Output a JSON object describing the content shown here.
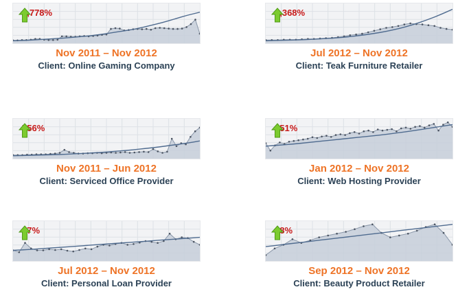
{
  "colors": {
    "percent": "#c81919",
    "period": "#ee7326",
    "client": "#2c4256",
    "area": "#c7ced9",
    "trend": "#4f6b8f",
    "arrow": "#7ccb2f"
  },
  "icon": "green-up-arrow-icon",
  "cards": [
    {
      "percent": "2,778%",
      "period": "Nov 2011 – Nov 2012",
      "client": "Client: Online Gaming Company"
    },
    {
      "percent": "1,368%",
      "period": "Jul 2012 – Nov 2012",
      "client": "Client: Teak Furniture Retailer"
    },
    {
      "percent": "756%",
      "period": "Nov 2011 – Jun 2012",
      "client": "Client: Serviced Office Provider"
    },
    {
      "percent": "251%",
      "period": "Jan 2012 – Nov 2012",
      "client": "Client: Web Hosting Provider"
    },
    {
      "percent": "67%",
      "period": "Jul 2012 – Nov 2012",
      "client": "Client: Personal Loan Provider"
    },
    {
      "percent": "28%",
      "period": "Sep 2012 – Nov 2012",
      "client": "Client: Beauty Product Retailer"
    }
  ],
  "chart_data": [
    {
      "type": "area",
      "ylim": [
        0,
        100
      ],
      "values": [
        4,
        4,
        5,
        5,
        6,
        8,
        8,
        6,
        5,
        5,
        6,
        15,
        15,
        14,
        14,
        15,
        16,
        15,
        16,
        17,
        19,
        20,
        35,
        37,
        36,
        31,
        32,
        34,
        35,
        34,
        35,
        33,
        37,
        38,
        37,
        36,
        35,
        35,
        36,
        40,
        48,
        60,
        22
      ],
      "trend": [
        3,
        4,
        6,
        8,
        10,
        13,
        16,
        20,
        25,
        30,
        36,
        44,
        52,
        62,
        72,
        80
      ]
    },
    {
      "type": "area",
      "ylim": [
        0,
        100
      ],
      "values": [
        5,
        5,
        5,
        6,
        6,
        6,
        7,
        8,
        8,
        9,
        10,
        11,
        13,
        15,
        18,
        20,
        22,
        26,
        30,
        34,
        38,
        40,
        43,
        47,
        50,
        48,
        47,
        45,
        43,
        38,
        35,
        33
      ],
      "trend": [
        3,
        4,
        5,
        6,
        8,
        10,
        13,
        17,
        22,
        28,
        36,
        46,
        58,
        72,
        88
      ]
    },
    {
      "type": "area",
      "ylim": [
        0,
        100
      ],
      "values": [
        6,
        6,
        6,
        7,
        7,
        8,
        8,
        8,
        9,
        10,
        12,
        20,
        14,
        12,
        10,
        10,
        11,
        11,
        12,
        11,
        12,
        13,
        12,
        13,
        14,
        12,
        13,
        14,
        15,
        14,
        22,
        16,
        12,
        15,
        50,
        30,
        38,
        35,
        55,
        70,
        80
      ],
      "trend": [
        4,
        5,
        6,
        7,
        8,
        10,
        12,
        14,
        17,
        20,
        24,
        28,
        33,
        38,
        44
      ]
    },
    {
      "type": "area",
      "ylim": [
        0,
        100
      ],
      "values": [
        38,
        18,
        32,
        40,
        36,
        42,
        44,
        46,
        48,
        50,
        54,
        52,
        56,
        58,
        55,
        60,
        62,
        60,
        65,
        68,
        64,
        70,
        72,
        68,
        75,
        72,
        74,
        76,
        70,
        78,
        80,
        77,
        82,
        84,
        80,
        86,
        90,
        72,
        88,
        94,
        82
      ],
      "trend": [
        30,
        33,
        36,
        40,
        44,
        48,
        52,
        56,
        60,
        65,
        70,
        76,
        82,
        88
      ]
    },
    {
      "type": "area",
      "ylim": [
        0,
        100
      ],
      "values": [
        25,
        20,
        45,
        30,
        25,
        25,
        28,
        26,
        28,
        24,
        22,
        26,
        30,
        28,
        35,
        40,
        38,
        42,
        45,
        40,
        42,
        46,
        50,
        48,
        45,
        50,
        70,
        55,
        60,
        58,
        48,
        40
      ],
      "trend": [
        25,
        27,
        30,
        33,
        36,
        39,
        42,
        45,
        48,
        51,
        54,
        57,
        60
      ]
    },
    {
      "type": "area",
      "ylim": [
        0,
        100
      ],
      "values": [
        12,
        30,
        40,
        55,
        45,
        52,
        60,
        65,
        70,
        75,
        82,
        90,
        95,
        72,
        60,
        65,
        70,
        78,
        88,
        95,
        72,
        40
      ],
      "trend": [
        35,
        40,
        45,
        50,
        55,
        60,
        65,
        70,
        75,
        80,
        85,
        90,
        95
      ]
    }
  ]
}
